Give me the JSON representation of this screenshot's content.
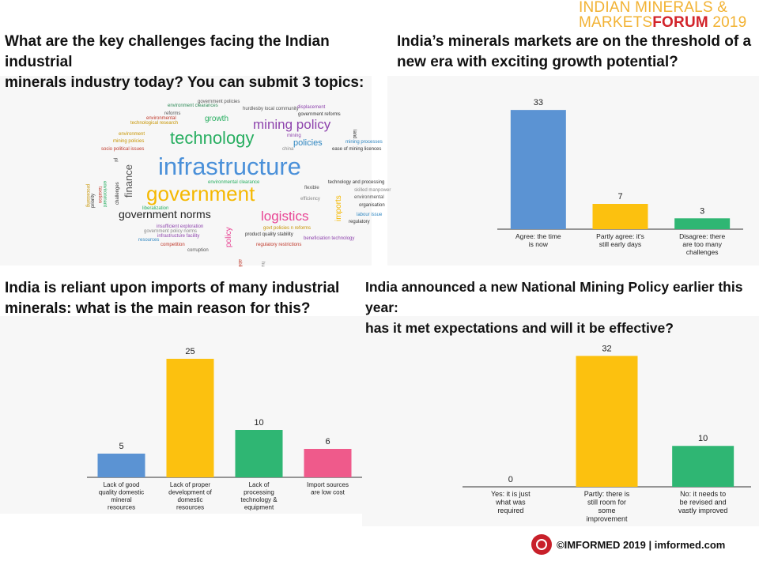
{
  "brand": {
    "line1": "INDIAN MINERALS &",
    "line2a": "MARKETS",
    "line2b": "FORUM",
    "line2c": " 2019"
  },
  "footer": {
    "text": "©IMFORMED 2019  | imformed.com"
  },
  "panels": {
    "wordcloud": {
      "title_line1": "What are the key challenges facing the Indian industrial",
      "title_line2": "minerals industry today? You can submit 3 topics:",
      "words": [
        {
          "text": "government policies",
          "size": 6,
          "color": "#555555"
        },
        {
          "text": "environment clearances",
          "size": 6,
          "color": "#2e8b57"
        },
        {
          "text": "hurdlesby local community",
          "size": 6,
          "color": "#555555"
        },
        {
          "text": "reforms",
          "size": 6,
          "color": "#555555"
        },
        {
          "text": "environmental",
          "size": 6,
          "color": "#c0392b"
        },
        {
          "text": "technological research",
          "size": 6,
          "color": "#c79400"
        },
        {
          "text": "growth",
          "size": 10,
          "color": "#27ae60"
        },
        {
          "text": "displacement",
          "size": 6,
          "color": "#8e44ad"
        },
        {
          "text": "government reforms",
          "size": 6,
          "color": "#333333"
        },
        {
          "text": "mining policy",
          "size": 17,
          "color": "#8e44ad"
        },
        {
          "text": "land",
          "size": 6,
          "color": "#333333"
        },
        {
          "text": "environment",
          "size": 6,
          "color": "#c79400"
        },
        {
          "text": "technology",
          "size": 22,
          "color": "#27ae60"
        },
        {
          "text": "mining",
          "size": 6,
          "color": "#8e44ad"
        },
        {
          "text": "mining policies",
          "size": 6,
          "color": "#c79400"
        },
        {
          "text": "policies",
          "size": 11,
          "color": "#2e86c1"
        },
        {
          "text": "mining processes",
          "size": 6,
          "color": "#2e86c1"
        },
        {
          "text": "socio political issues",
          "size": 6,
          "color": "#c0392b"
        },
        {
          "text": "china",
          "size": 6,
          "color": "#888888"
        },
        {
          "text": "ease of mining licences",
          "size": 6,
          "color": "#333333"
        },
        {
          "text": "infrastructure",
          "size": 31,
          "color": "#4a90d9"
        },
        {
          "text": "finance",
          "size": 13,
          "color": "#555555"
        },
        {
          "text": "processing",
          "size": 6,
          "color": "#c79400"
        },
        {
          "text": "environment",
          "size": 6,
          "color": "#27ae60"
        },
        {
          "text": "environmental clearance",
          "size": 6,
          "color": "#27ae60"
        },
        {
          "text": "technology and processing",
          "size": 6,
          "color": "#333333"
        },
        {
          "text": "flexible",
          "size": 6,
          "color": "#555555"
        },
        {
          "text": "skilled manpower",
          "size": 6,
          "color": "#888888"
        },
        {
          "text": "government",
          "size": 26,
          "color": "#f5b800"
        },
        {
          "text": "efficiency",
          "size": 6,
          "color": "#888888"
        },
        {
          "text": "environmental",
          "size": 6,
          "color": "#555555"
        },
        {
          "text": "imports",
          "size": 10,
          "color": "#f5b800"
        },
        {
          "text": "organisation",
          "size": 6,
          "color": "#333333"
        },
        {
          "text": "challenges",
          "size": 6,
          "color": "#333333"
        },
        {
          "text": "priority",
          "size": 6,
          "color": "#333333"
        },
        {
          "text": "liberalization",
          "size": 6,
          "color": "#27ae60"
        },
        {
          "text": "labour issue",
          "size": 6,
          "color": "#2e86c1"
        },
        {
          "text": "government norms",
          "size": 14,
          "color": "#222222"
        },
        {
          "text": "logistics",
          "size": 17,
          "color": "#e84393"
        },
        {
          "text": "regulatory",
          "size": 6,
          "color": "#333333"
        },
        {
          "text": "insufficient exploration",
          "size": 6,
          "color": "#8e44ad"
        },
        {
          "text": "government policy norms",
          "size": 6,
          "color": "#888888"
        },
        {
          "text": "govt policies n reforms",
          "size": 6,
          "color": "#c79400"
        },
        {
          "text": "infrastructure facility",
          "size": 6,
          "color": "#8e44ad"
        },
        {
          "text": "product quality stability",
          "size": 6,
          "color": "#333333"
        },
        {
          "text": "resources",
          "size": 6,
          "color": "#2e86c1"
        },
        {
          "text": "beneficiation technology",
          "size": 6,
          "color": "#8e44ad"
        },
        {
          "text": "policy",
          "size": 10,
          "color": "#e84393"
        },
        {
          "text": "competition",
          "size": 6,
          "color": "#c0392b"
        },
        {
          "text": "regulatory restrictions",
          "size": 6,
          "color": "#c0392b"
        },
        {
          "text": "corruption",
          "size": 6,
          "color": "#555555"
        },
        {
          "text": "ability",
          "size": 6,
          "color": "#c0392b"
        },
        {
          "text": "human",
          "size": 6,
          "color": "#888888"
        },
        {
          "text": "taxation",
          "size": 6,
          "color": "#c0392b"
        },
        {
          "text": "pl",
          "size": 6,
          "color": "#333333"
        }
      ]
    },
    "q1": {
      "title_line1": "India’s minerals markets are on the threshold of a",
      "title_line2": "new era with exciting growth potential?"
    },
    "q2": {
      "title_line1": "India is reliant upon imports of many industrial",
      "title_line2": "minerals: what is the main reason for this?"
    },
    "q3": {
      "title_line1": "India announced a new National Mining Policy earlier this year:",
      "title_line2": "has it met expectations and will it be effective?"
    }
  },
  "chart_data": [
    {
      "id": "q1",
      "type": "bar",
      "categories": [
        "Agree: the time is now",
        "Partly agree: it's still early days",
        "Disagree: there are too many challenges"
      ],
      "category_lines": [
        [
          "Agree: the time",
          "is now"
        ],
        [
          "Partly agree: it's",
          "still early days"
        ],
        [
          "Disagree: there",
          "are too many",
          "challenges"
        ]
      ],
      "values": [
        33,
        7,
        3
      ],
      "colors": [
        "#5b93d3",
        "#fcc10f",
        "#2fb673"
      ],
      "ylim": [
        0,
        35
      ]
    },
    {
      "id": "q2",
      "type": "bar",
      "categories": [
        "Lack of good quality domestic mineral resources",
        "Lack of proper development of domestic resources",
        "Lack of processing technology & equipment",
        "Import sources are low cost"
      ],
      "category_lines": [
        [
          "Lack of good",
          "quality domestic",
          "mineral",
          "resources"
        ],
        [
          "Lack of proper",
          "development of",
          "domestic",
          "resources"
        ],
        [
          "Lack of",
          "processing",
          "technology &",
          "equipment"
        ],
        [
          "Import sources",
          "are low cost"
        ]
      ],
      "values": [
        5,
        25,
        10,
        6
      ],
      "colors": [
        "#5b93d3",
        "#fcc10f",
        "#2fb673",
        "#ef5a8b"
      ],
      "ylim": [
        0,
        27
      ]
    },
    {
      "id": "q3",
      "type": "bar",
      "categories": [
        "Yes: it is just what was required",
        "Partly: there is still room for some improvement",
        "No: it needs to be revised and vastly improved"
      ],
      "category_lines": [
        [
          "Yes: it is just",
          "what was",
          "required"
        ],
        [
          "Partly: there is",
          "still room for",
          "some",
          "improvement"
        ],
        [
          "No: it needs to",
          "be revised and",
          "vastly improved"
        ]
      ],
      "values": [
        0,
        32,
        10
      ],
      "colors": [
        "#5b93d3",
        "#fcc10f",
        "#2fb673"
      ],
      "ylim": [
        0,
        34
      ]
    }
  ]
}
